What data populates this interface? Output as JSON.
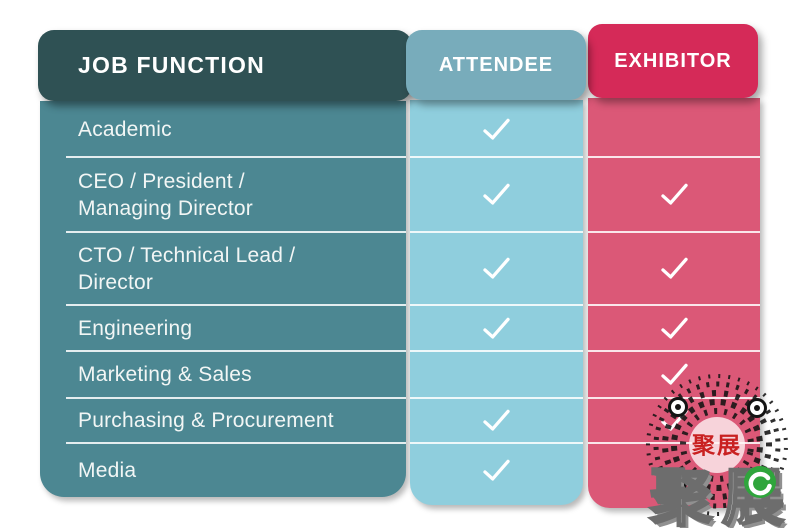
{
  "table": {
    "columns": {
      "job_function": {
        "header": "JOB FUNCTION"
      },
      "attendee": {
        "header": "ATTENDEE"
      },
      "exhibitor": {
        "header": "EXHIBITOR"
      }
    },
    "rows": [
      {
        "label": "Academic",
        "attendee": true,
        "exhibitor": false
      },
      {
        "label": "CEO / President /\nManaging Director",
        "attendee": true,
        "exhibitor": true
      },
      {
        "label": "CTO / Technical Lead /\nDirector",
        "attendee": true,
        "exhibitor": true
      },
      {
        "label": "Engineering",
        "attendee": true,
        "exhibitor": true
      },
      {
        "label": "Marketing & Sales",
        "attendee": false,
        "exhibitor": true
      },
      {
        "label": "Purchasing & Procurement",
        "attendee": true,
        "exhibitor": true
      },
      {
        "label": "Media",
        "attendee": true,
        "exhibitor": false
      }
    ]
  },
  "watermark": {
    "stamp_text": "聚展",
    "bottom_text": "聚展"
  },
  "colors": {
    "job_header": "#2F5154",
    "job_body": "#4C8792",
    "attendee_header": "#78ACBB",
    "attendee_body": "#8FCEDD",
    "exhibitor_header": "#D52A58",
    "exhibitor_body": "#DB5877",
    "check": "#FFFFFF",
    "stamp_red": "#C92121",
    "badge_green": "#2FA53C"
  }
}
